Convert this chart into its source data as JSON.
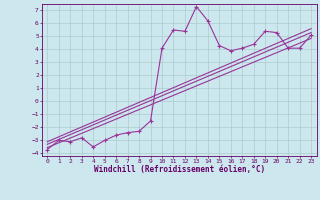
{
  "title": "",
  "xlabel": "Windchill (Refroidissement éolien,°C)",
  "ylabel": "",
  "bg_color": "#cce8ee",
  "line_color": "#993399",
  "grid_color": "#aacccc",
  "xlim": [
    -0.5,
    23.5
  ],
  "ylim": [
    -4.2,
    7.5
  ],
  "xticks": [
    0,
    1,
    2,
    3,
    4,
    5,
    6,
    7,
    8,
    9,
    10,
    11,
    12,
    13,
    14,
    15,
    16,
    17,
    18,
    19,
    20,
    21,
    22,
    23
  ],
  "yticks": [
    -4,
    -3,
    -2,
    -1,
    0,
    1,
    2,
    3,
    4,
    5,
    6,
    7
  ],
  "data_x": [
    0,
    1,
    2,
    3,
    4,
    5,
    6,
    7,
    8,
    9,
    10,
    11,
    12,
    13,
    14,
    15,
    16,
    17,
    18,
    19,
    20,
    21,
    22,
    23
  ],
  "data_y": [
    -3.7,
    -3.0,
    -3.1,
    -2.8,
    -3.5,
    -3.0,
    -2.6,
    -2.4,
    -2.3,
    -1.5,
    4.1,
    5.5,
    5.4,
    7.3,
    6.2,
    4.3,
    3.9,
    4.1,
    4.4,
    5.4,
    5.3,
    4.1,
    4.1,
    5.1
  ],
  "reg_lines": [
    {
      "x0": 0,
      "y0": -3.3,
      "x1": 23,
      "y1": 5.3
    },
    {
      "x0": 0,
      "y0": -3.55,
      "x1": 23,
      "y1": 4.85
    },
    {
      "x0": 0,
      "y0": -3.1,
      "x1": 23,
      "y1": 5.6
    }
  ],
  "font_color": "#660066",
  "tick_fontsize": 4.5,
  "xlabel_fontsize": 5.5
}
